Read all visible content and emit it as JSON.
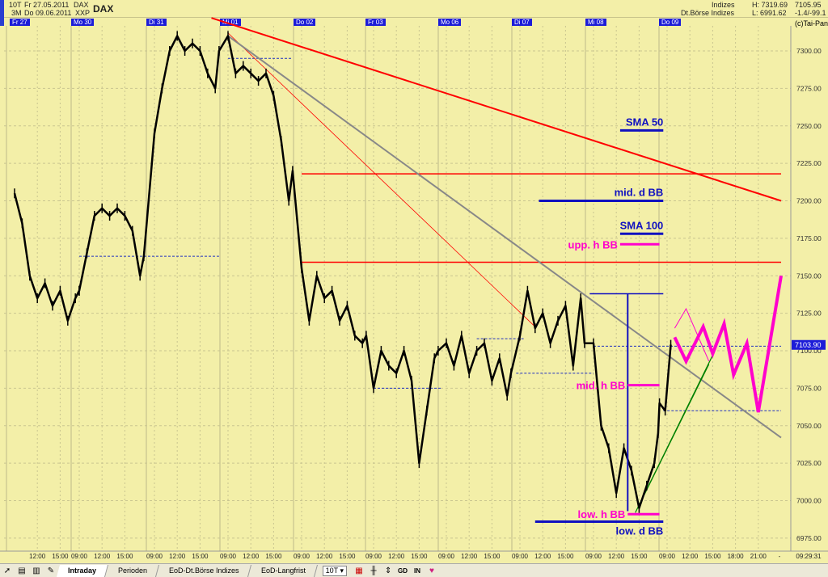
{
  "header": {
    "period": "10T",
    "range": "3M",
    "date_from": "Fr 27.05.2011",
    "date_to": "Do 09.06.2011",
    "symbol": "DAX",
    "exchange": "XXP",
    "title": "DAX",
    "category": "Indizes",
    "market": "Dt.Börse Indizes",
    "high": "H: 7319.69",
    "low": "L: 6991.62",
    "last": "7105.95",
    "change": "-1.4/-99.1",
    "copyright": "(c)Tai-Pan"
  },
  "days": [
    "Fr 27",
    "Mo 30",
    "Di 31",
    "Mi 01",
    "Do 02",
    "Fr 03",
    "Mo 06",
    "Di 07",
    "Mi 08",
    "Do 09"
  ],
  "time_labels": [
    "12:00",
    "15:00",
    "09:00",
    "12:00",
    "15:00",
    "09:00",
    "12:00",
    "15:00",
    "09:00",
    "12:00",
    "15:00",
    "09:00",
    "12:00",
    "15:00",
    "09:00",
    "12:00",
    "15:00",
    "09:00",
    "12:00",
    "15:00",
    "09:00",
    "12:00",
    "15:00",
    "09:00",
    "12:00",
    "15:00",
    "09:00",
    "12:00",
    "15:00",
    "18:00",
    "21:00"
  ],
  "time_sep": "-",
  "clock": "09:29:31",
  "toolbar": {
    "tabs": [
      "Intraday",
      "Perioden",
      "EoD-Dt.Börse Indizes",
      "EoD-Langfrist"
    ],
    "active": "Intraday",
    "period_select": "10T",
    "gd": "GD",
    "in": "IN"
  },
  "chart_data": {
    "type": "line",
    "ylim": [
      6965,
      7330
    ],
    "yticks": [
      6975,
      7000,
      7025,
      7050,
      7075,
      7100,
      7125,
      7150,
      7175,
      7200,
      7225,
      7250,
      7275,
      7300
    ],
    "last_price": "7103.90",
    "grid": true,
    "price_color": "#000000",
    "series": [
      [
        "27.05 09:00",
        7205
      ],
      [
        "27.05 10:00",
        7185
      ],
      [
        "27.05 11:00",
        7150
      ],
      [
        "27.05 12:00",
        7135
      ],
      [
        "27.05 13:00",
        7145
      ],
      [
        "27.05 14:00",
        7130
      ],
      [
        "27.05 15:00",
        7140
      ],
      [
        "27.05 16:00",
        7120
      ],
      [
        "27.05 17:00",
        7135
      ],
      [
        "27.05 17:30",
        7140
      ],
      [
        "30.05 09:00",
        7140
      ],
      [
        "30.05 10:00",
        7165
      ],
      [
        "30.05 11:00",
        7190
      ],
      [
        "30.05 12:00",
        7195
      ],
      [
        "30.05 13:00",
        7190
      ],
      [
        "30.05 14:00",
        7195
      ],
      [
        "30.05 15:00",
        7190
      ],
      [
        "30.05 16:00",
        7180
      ],
      [
        "30.05 17:00",
        7150
      ],
      [
        "30.05 17:30",
        7163
      ],
      [
        "31.05 09:00",
        7245
      ],
      [
        "31.05 10:00",
        7275
      ],
      [
        "31.05 11:00",
        7300
      ],
      [
        "31.05 12:00",
        7310
      ],
      [
        "31.05 13:00",
        7300
      ],
      [
        "31.05 14:00",
        7305
      ],
      [
        "31.05 15:00",
        7300
      ],
      [
        "31.05 16:00",
        7285
      ],
      [
        "31.05 17:00",
        7275
      ],
      [
        "31.05 17:30",
        7300
      ],
      [
        "01.06 09:00",
        7310
      ],
      [
        "01.06 10:00",
        7285
      ],
      [
        "01.06 11:00",
        7290
      ],
      [
        "01.06 12:00",
        7285
      ],
      [
        "01.06 13:00",
        7280
      ],
      [
        "01.06 14:00",
        7285
      ],
      [
        "01.06 15:00",
        7270
      ],
      [
        "01.06 16:00",
        7240
      ],
      [
        "01.06 17:00",
        7200
      ],
      [
        "01.06 17:30",
        7220
      ],
      [
        "02.06 09:00",
        7155
      ],
      [
        "02.06 10:00",
        7120
      ],
      [
        "02.06 11:00",
        7150
      ],
      [
        "02.06 12:00",
        7135
      ],
      [
        "02.06 13:00",
        7140
      ],
      [
        "02.06 14:00",
        7120
      ],
      [
        "02.06 15:00",
        7130
      ],
      [
        "02.06 16:00",
        7110
      ],
      [
        "02.06 17:00",
        7105
      ],
      [
        "02.06 17:30",
        7110
      ],
      [
        "03.06 09:00",
        7075
      ],
      [
        "03.06 10:00",
        7100
      ],
      [
        "03.06 11:00",
        7090
      ],
      [
        "03.06 12:00",
        7085
      ],
      [
        "03.06 13:00",
        7100
      ],
      [
        "03.06 14:00",
        7080
      ],
      [
        "03.06 15:00",
        7025
      ],
      [
        "03.06 16:00",
        7060
      ],
      [
        "03.06 17:00",
        7095
      ],
      [
        "03.06 17:30",
        7100
      ],
      [
        "06.06 09:00",
        7105
      ],
      [
        "06.06 10:00",
        7090
      ],
      [
        "06.06 11:00",
        7110
      ],
      [
        "06.06 12:00",
        7085
      ],
      [
        "06.06 13:00",
        7100
      ],
      [
        "06.06 14:00",
        7105
      ],
      [
        "06.06 15:00",
        7080
      ],
      [
        "06.06 16:00",
        7095
      ],
      [
        "06.06 17:00",
        7070
      ],
      [
        "06.06 17:30",
        7085
      ],
      [
        "07.06 09:00",
        7110
      ],
      [
        "07.06 10:00",
        7140
      ],
      [
        "07.06 11:00",
        7115
      ],
      [
        "07.06 12:00",
        7125
      ],
      [
        "07.06 13:00",
        7105
      ],
      [
        "07.06 14:00",
        7120
      ],
      [
        "07.06 15:00",
        7130
      ],
      [
        "07.06 16:00",
        7090
      ],
      [
        "07.06 17:00",
        7135
      ],
      [
        "07.06 17:30",
        7105
      ],
      [
        "08.06 09:00",
        7105
      ],
      [
        "08.06 10:00",
        7050
      ],
      [
        "08.06 11:00",
        7035
      ],
      [
        "08.06 12:00",
        7005
      ],
      [
        "08.06 13:00",
        7035
      ],
      [
        "08.06 14:00",
        7020
      ],
      [
        "08.06 15:00",
        6995
      ],
      [
        "08.06 16:00",
        7010
      ],
      [
        "08.06 17:00",
        7025
      ],
      [
        "08.06 17:30",
        7045
      ],
      [
        "09.06 08:00",
        7065
      ],
      [
        "09.06 08:45",
        7060
      ],
      [
        "09.06 09:29",
        7104
      ]
    ],
    "forecast": {
      "color": "#ff00cc",
      "points": [
        [
          "09.06 10:00",
          7109
        ],
        [
          "09.06 11:30",
          7093
        ],
        [
          "09.06 13:45",
          7116
        ],
        [
          "09.06 15:00",
          7098
        ],
        [
          "09.06 16:30",
          7118
        ],
        [
          "09.06 17:45",
          7084
        ],
        [
          "09.06 19:30",
          7105
        ],
        [
          "09.06 21:00",
          7059
        ],
        [
          "09.06 24:00",
          7150
        ]
      ]
    },
    "forecast_alt": {
      "color": "#ff00cc",
      "points": [
        [
          "09.06 10:00",
          7115
        ],
        [
          "09.06 11:30",
          7128
        ],
        [
          "09.06 14:30",
          7093
        ]
      ]
    },
    "trendlines": [
      {
        "color": "#ff0000",
        "width": 2,
        "from": [
          "31.05 16:30",
          7322
        ],
        "to": [
          "09.06 24:00",
          7200
        ]
      },
      {
        "color": "#ff0000",
        "width": 0.8,
        "from": [
          "01.06 09:00",
          7312
        ],
        "to": [
          "07.06 11:00",
          7116
        ]
      },
      {
        "color": "#888888",
        "width": 2,
        "from": [
          "01.06 09:00",
          7310
        ],
        "to": [
          "09.06 24:00",
          7042
        ]
      },
      {
        "color": "#008000",
        "width": 1.2,
        "from": [
          "08.06 14:30",
          6992
        ],
        "to": [
          "09.06 15:00",
          7097
        ]
      },
      {
        "color": "#008000",
        "width": 1.2,
        "from": [
          "08.06 15:00",
          6997
        ],
        "to": [
          "09.06 14:30",
          7091
        ]
      }
    ],
    "levels": [
      {
        "price": 7218,
        "color": "#ff0000",
        "from": "02.06 09:00",
        "to": "09.06 24:00",
        "style": "solid"
      },
      {
        "price": 7159,
        "color": "#ff0000",
        "from": "02.06 09:00",
        "to": "09.06 24:00",
        "style": "solid"
      },
      {
        "price": 7163,
        "color": "#2030c0",
        "from": "30.05 09:00",
        "to": "31.05 17:30",
        "style": "dashed"
      },
      {
        "price": 7295,
        "color": "#2030c0",
        "from": "01.06 09:00",
        "to": "01.06 17:30",
        "style": "dashed"
      },
      {
        "price": 7075,
        "color": "#2030c0",
        "from": "03.06 09:00",
        "to": "03.06 18:00",
        "style": "dashed"
      },
      {
        "price": 7108,
        "color": "#2030c0",
        "from": "06.06 13:00",
        "to": "07.06 09:30",
        "style": "dashed"
      },
      {
        "price": 7085,
        "color": "#2030c0",
        "from": "07.06 08:30",
        "to": "08.06 09:00",
        "style": "dashed"
      },
      {
        "price": 7103,
        "color": "#2030c0",
        "from": "08.06 09:00",
        "to": "09.06 24:00",
        "style": "dashed"
      },
      {
        "price": 7060,
        "color": "#2030c0",
        "from": "09.06 08:30",
        "to": "09.06 24:00",
        "style": "dashed"
      }
    ],
    "range_marker": {
      "color": "#1010c0",
      "time": "08.06 13:30",
      "high": 7138,
      "low": 6993,
      "from": "08.06 08:30",
      "to": "09.06 08:30"
    },
    "annotations": [
      {
        "text": "SMA 50",
        "price": 7247,
        "color": "#1010c0",
        "from": "08.06 12:30",
        "to": "09.06 08:30"
      },
      {
        "text": "mid. d BB",
        "price": 7200,
        "color": "#1010c0",
        "from": "07.06 11:30",
        "to": "09.06 08:30"
      },
      {
        "text": "SMA 100",
        "price": 7178,
        "color": "#1010c0",
        "from": "08.06 12:30",
        "to": "09.06 08:30"
      },
      {
        "text": "upp. h BB",
        "price": 7171,
        "color": "#ff00cc",
        "from": "08.06 12:30",
        "to": "09.06 08:00",
        "label_side": "left"
      },
      {
        "text": "mid. h BB",
        "price": 7077,
        "color": "#ff00cc",
        "from": "08.06 13:30",
        "to": "09.06 08:00",
        "label_side": "left"
      },
      {
        "text": "low. h BB",
        "price": 6991,
        "color": "#ff00cc",
        "from": "08.06 13:30",
        "to": "09.06 08:00",
        "label_side": "left"
      },
      {
        "text": "low. d BB",
        "price": 6986,
        "color": "#1010c0",
        "from": "07.06 11:00",
        "to": "09.06 08:30",
        "label_side": "below"
      }
    ]
  }
}
